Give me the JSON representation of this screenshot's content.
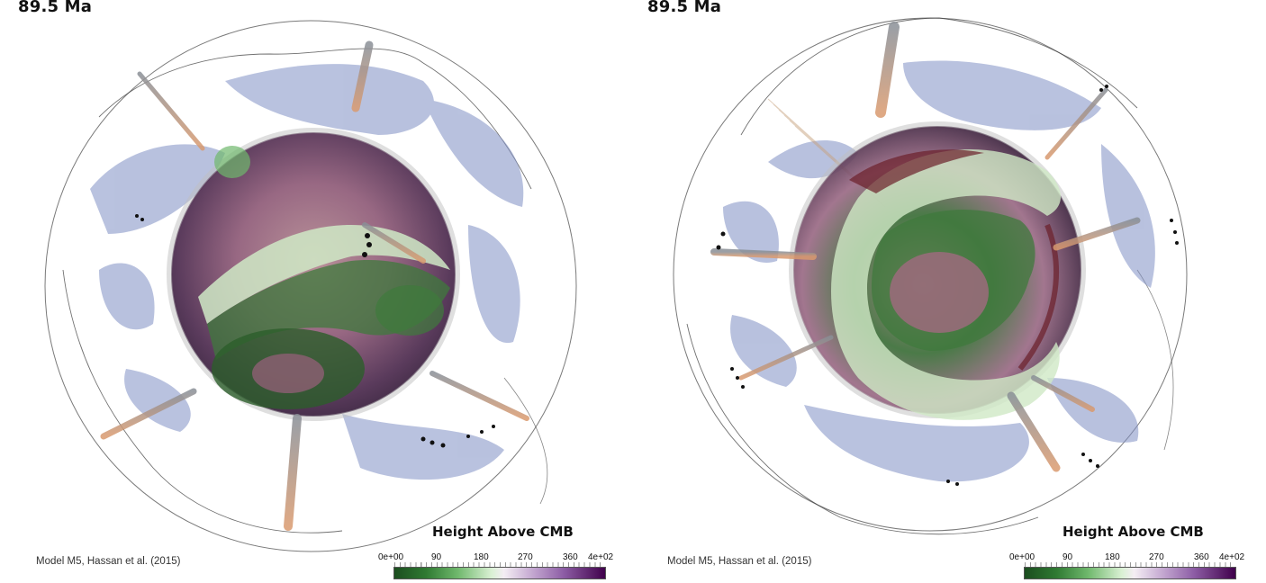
{
  "panels": [
    {
      "age_label": "89.5 Ma",
      "citation": "Model M5, Hassan et al. (2015)",
      "colorbar": {
        "title": "Height Above CMB",
        "ticks": [
          "0e+00",
          "90",
          "180",
          "270",
          "360",
          "4e+02"
        ]
      }
    },
    {
      "age_label": "89.5 Ma",
      "citation": "Model M5, Hassan et al. (2015)",
      "colorbar": {
        "title": "Height Above CMB",
        "ticks": [
          "0e+00",
          "90",
          "180",
          "270",
          "360",
          "4e+02"
        ]
      }
    }
  ],
  "colors": {
    "core_green_dark": "#2c5e2a",
    "core_green_light": "#cfe9c5",
    "core_purple": "#5a2a5e",
    "core_pink": "#a8787f",
    "slab_blue": "#7f8fc4",
    "plume_orange": "#d9a07a"
  }
}
